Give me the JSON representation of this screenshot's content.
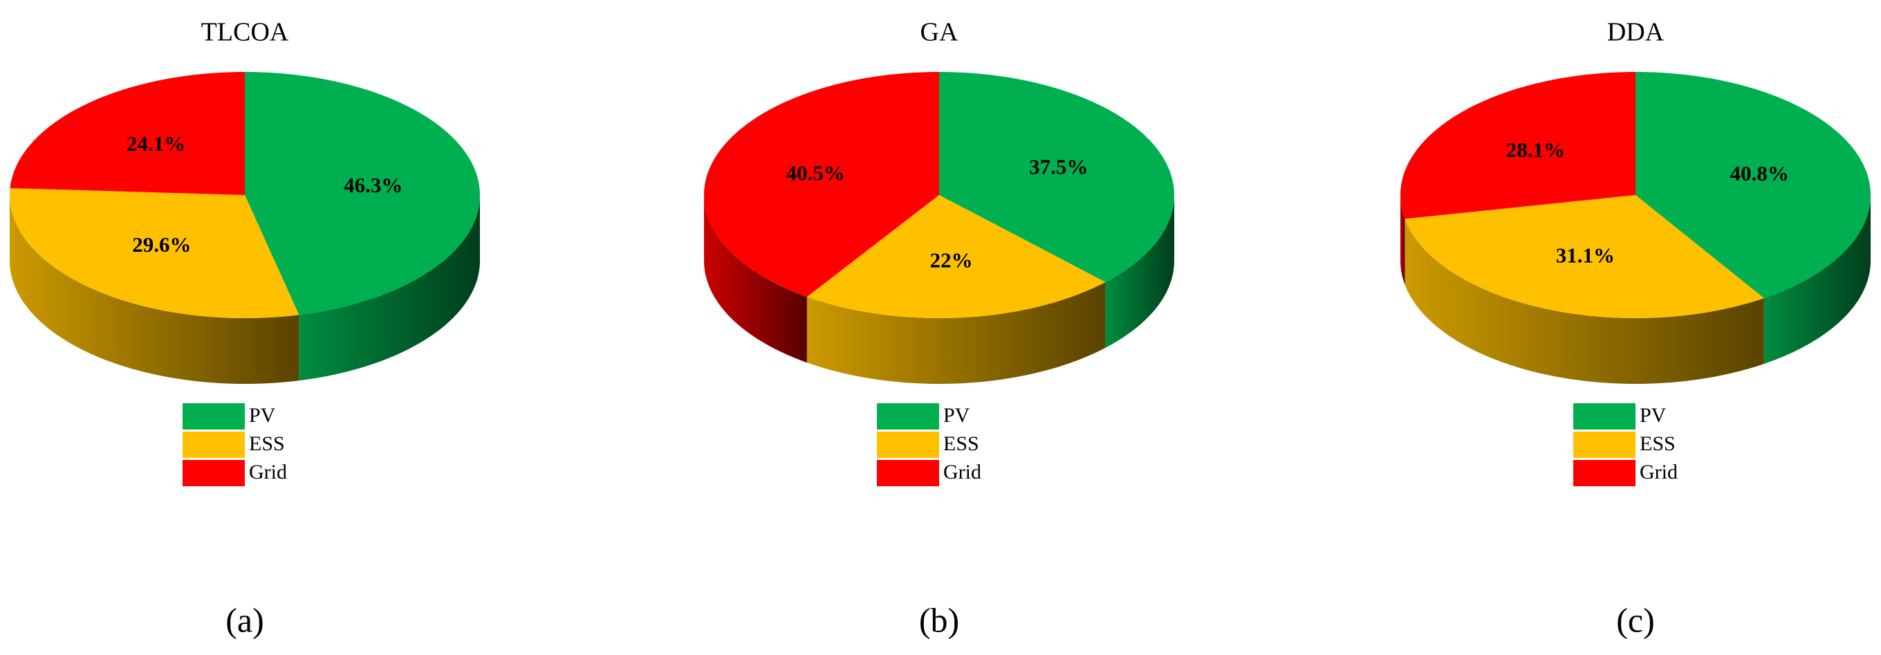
{
  "chart_data": [
    {
      "type": "pie",
      "title": "TLCOA",
      "caption": "(a)",
      "categories": [
        "PV",
        "ESS",
        "Grid"
      ],
      "values": [
        46.3,
        29.6,
        24.1
      ],
      "value_labels": [
        "46.3%",
        "29.6%",
        "24.1%"
      ],
      "colors": [
        "#00b050",
        "#ffc000",
        "#ff0000"
      ]
    },
    {
      "type": "pie",
      "title": "GA",
      "caption": "(b)",
      "categories": [
        "PV",
        "ESS",
        "Grid"
      ],
      "values": [
        37.5,
        22,
        40.5
      ],
      "value_labels": [
        "37.5%",
        "22%",
        "40.5%"
      ],
      "colors": [
        "#00b050",
        "#ffc000",
        "#ff0000"
      ]
    },
    {
      "type": "pie",
      "title": "DDA",
      "caption": "(c)",
      "categories": [
        "PV",
        "ESS",
        "Grid"
      ],
      "values": [
        40.8,
        31.1,
        28.1
      ],
      "value_labels": [
        "40.8%",
        "31.1%",
        "28.1%"
      ],
      "colors": [
        "#00b050",
        "#ffc000",
        "#ff0000"
      ]
    }
  ]
}
